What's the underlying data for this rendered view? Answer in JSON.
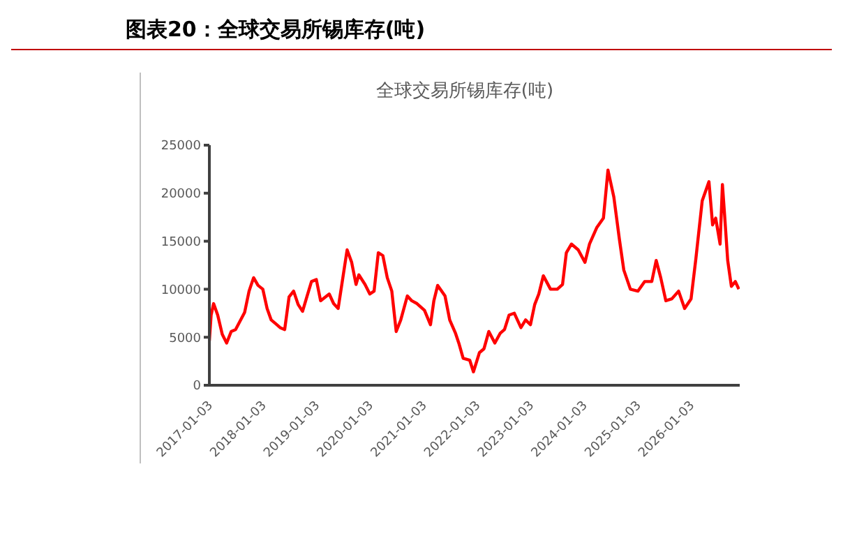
{
  "chart_data": {
    "type": "line",
    "title": "图表20：全球交易所锡库存(吨)",
    "subtitle": "全球交易所锡库存(吨)",
    "x": [
      "2017-01-03",
      "2017-01-15",
      "2017-02-01",
      "2017-03-01",
      "2017-04-01",
      "2017-05-01",
      "2017-06-01",
      "2017-07-01",
      "2017-09-01",
      "2017-10-01",
      "2017-11-01",
      "2017-12-01",
      "2018-01-03",
      "2018-02-01",
      "2018-03-01",
      "2018-04-01",
      "2018-05-01",
      "2018-06-01",
      "2018-07-01",
      "2018-08-01",
      "2018-09-01",
      "2018-10-01",
      "2018-11-01",
      "2018-12-01",
      "2019-01-03",
      "2019-02-01",
      "2019-04-01",
      "2019-05-01",
      "2019-06-01",
      "2019-07-01",
      "2019-08-01",
      "2019-09-01",
      "2019-10-01",
      "2019-10-20",
      "2019-12-01",
      "2020-01-03",
      "2020-02-01",
      "2020-03-01",
      "2020-04-01",
      "2020-05-01",
      "2020-06-01",
      "2020-07-01",
      "2020-08-01",
      "2020-09-15",
      "2020-10-15",
      "2020-11-20",
      "2021-01-10",
      "2021-02-20",
      "2021-03-15",
      "2021-04-10",
      "2021-05-30",
      "2021-07-01",
      "2021-08-10",
      "2021-09-01",
      "2021-10-01",
      "2021-11-15",
      "2021-12-10",
      "2022-01-20",
      "2022-02-20",
      "2022-03-25",
      "2022-05-05",
      "2022-06-10",
      "2022-07-10",
      "2022-08-10",
      "2022-09-15",
      "2022-10-30",
      "2022-12-01",
      "2023-01-03",
      "2023-02-01",
      "2023-03-01",
      "2023-04-01",
      "2023-05-20",
      "2023-07-05",
      "2023-08-10",
      "2023-09-05",
      "2023-10-10",
      "2023-11-25",
      "2024-01-10",
      "2024-02-10",
      "2024-03-30",
      "2024-05-15",
      "2024-06-15",
      "2024-07-25",
      "2024-09-01",
      "2024-10-01",
      "2024-11-15",
      "2025-01-05",
      "2025-02-20",
      "2025-04-10",
      "2025-05-10",
      "2025-06-10",
      "2025-07-15",
      "2025-08-25",
      "2025-10-10",
      "2025-11-20",
      "2026-01-03",
      "2026-02-05",
      "2026-03-20",
      "2026-05-05",
      "2026-05-30",
      "2026-06-20",
      "2026-07-20",
      "2026-08-05",
      "2026-08-20",
      "2026-09-10",
      "2026-10-05",
      "2026-11-01",
      "2026-11-25"
    ],
    "series": [
      {
        "color": "#ff0000",
        "values": [
          4600,
          7300,
          8500,
          7300,
          5300,
          4400,
          5600,
          5800,
          7600,
          9800,
          11200,
          10400,
          10000,
          8000,
          6800,
          6400,
          6000,
          5800,
          9200,
          9800,
          8400,
          7700,
          9300,
          10800,
          11000,
          8800,
          9500,
          8500,
          8000,
          11000,
          14100,
          12800,
          10500,
          11500,
          10500,
          9500,
          9800,
          13800,
          13500,
          11200,
          9800,
          5600,
          6800,
          9300,
          8800,
          8500,
          7800,
          6300,
          8800,
          10400,
          9300,
          6800,
          5400,
          4400,
          2800,
          2600,
          1400,
          3400,
          3800,
          5600,
          4400,
          5400,
          5800,
          7300,
          7500,
          6000,
          6800,
          6300,
          8400,
          9500,
          11400,
          10000,
          10000,
          10500,
          13800,
          14700,
          14100,
          12800,
          14700,
          16400,
          17400,
          22400,
          19600,
          15200,
          12000,
          10000,
          9800,
          10800,
          10800,
          13000,
          11200,
          8800,
          9000,
          9800,
          8000,
          9000,
          13200,
          19200,
          21200,
          16700,
          17400,
          14700,
          20900,
          17700,
          13000,
          10300,
          10800,
          10000
        ]
      }
    ],
    "xlim": [
      "2017-01-03",
      "2026-12-01"
    ],
    "xticks": [
      "2017-01-03",
      "2018-01-03",
      "2019-01-03",
      "2020-01-03",
      "2021-01-03",
      "2022-01-03",
      "2023-01-03",
      "2024-01-03",
      "2025-01-03",
      "2026-01-03"
    ],
    "ylim": [
      0,
      25000
    ],
    "yticks": [
      0,
      5000,
      10000,
      15000,
      20000,
      25000
    ],
    "grid": false,
    "legend": false,
    "marker": "none",
    "line_style": "solid"
  }
}
